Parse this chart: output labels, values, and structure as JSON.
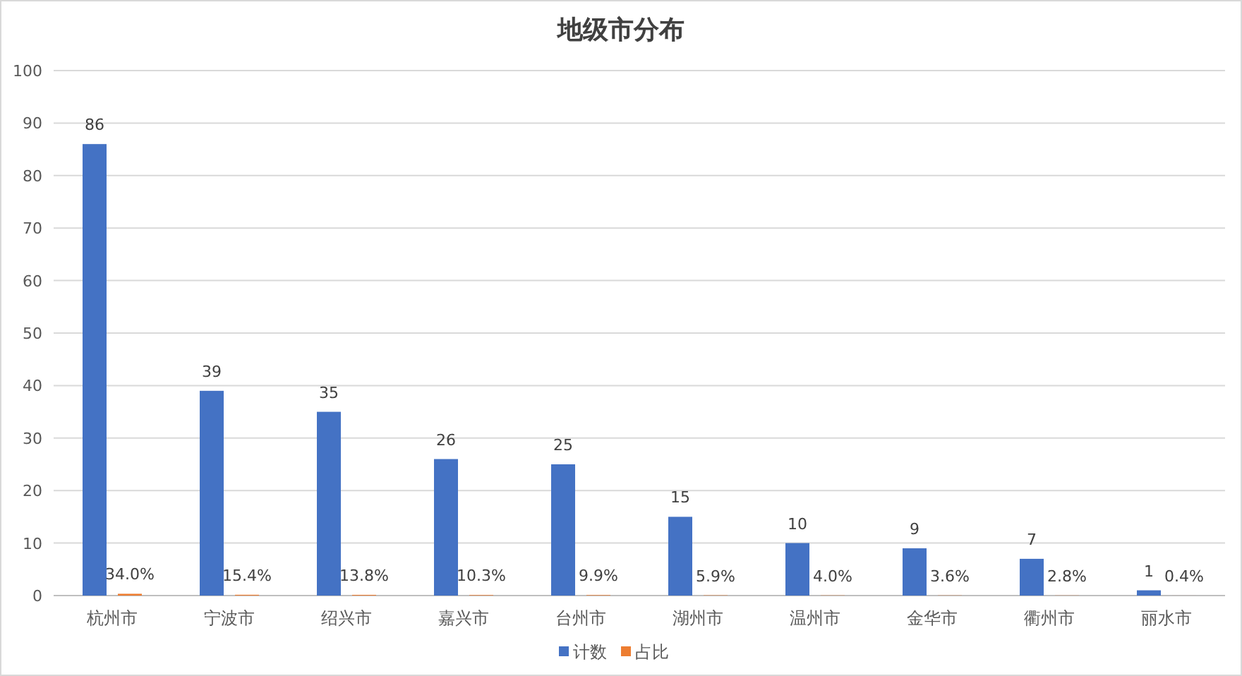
{
  "chart_data": {
    "type": "bar",
    "title": "地级市分布",
    "categories": [
      "杭州市",
      "宁波市",
      "绍兴市",
      "嘉兴市",
      "台州市",
      "湖州市",
      "温州市",
      "金华市",
      "衢州市",
      "丽水市"
    ],
    "series": [
      {
        "name": "计数",
        "color": "#4472c4",
        "values": [
          86,
          39,
          35,
          26,
          25,
          15,
          10,
          9,
          7,
          1
        ],
        "value_labels": [
          "86",
          "39",
          "35",
          "26",
          "25",
          "15",
          "10",
          "9",
          "7",
          "1"
        ]
      },
      {
        "name": "占比",
        "color": "#ed7d31",
        "values": [
          0.34,
          0.154,
          0.138,
          0.103,
          0.099,
          0.059,
          0.04,
          0.036,
          0.028,
          0.004
        ],
        "value_labels": [
          "34.0%",
          "15.4%",
          "13.8%",
          "10.3%",
          "9.9%",
          "5.9%",
          "4.0%",
          "3.6%",
          "2.8%",
          "0.4%"
        ]
      }
    ],
    "ylim": [
      0,
      100
    ],
    "yticks": [
      0,
      10,
      20,
      30,
      40,
      50,
      60,
      70,
      80,
      90,
      100
    ],
    "grid": "y",
    "legend": "bottom"
  }
}
